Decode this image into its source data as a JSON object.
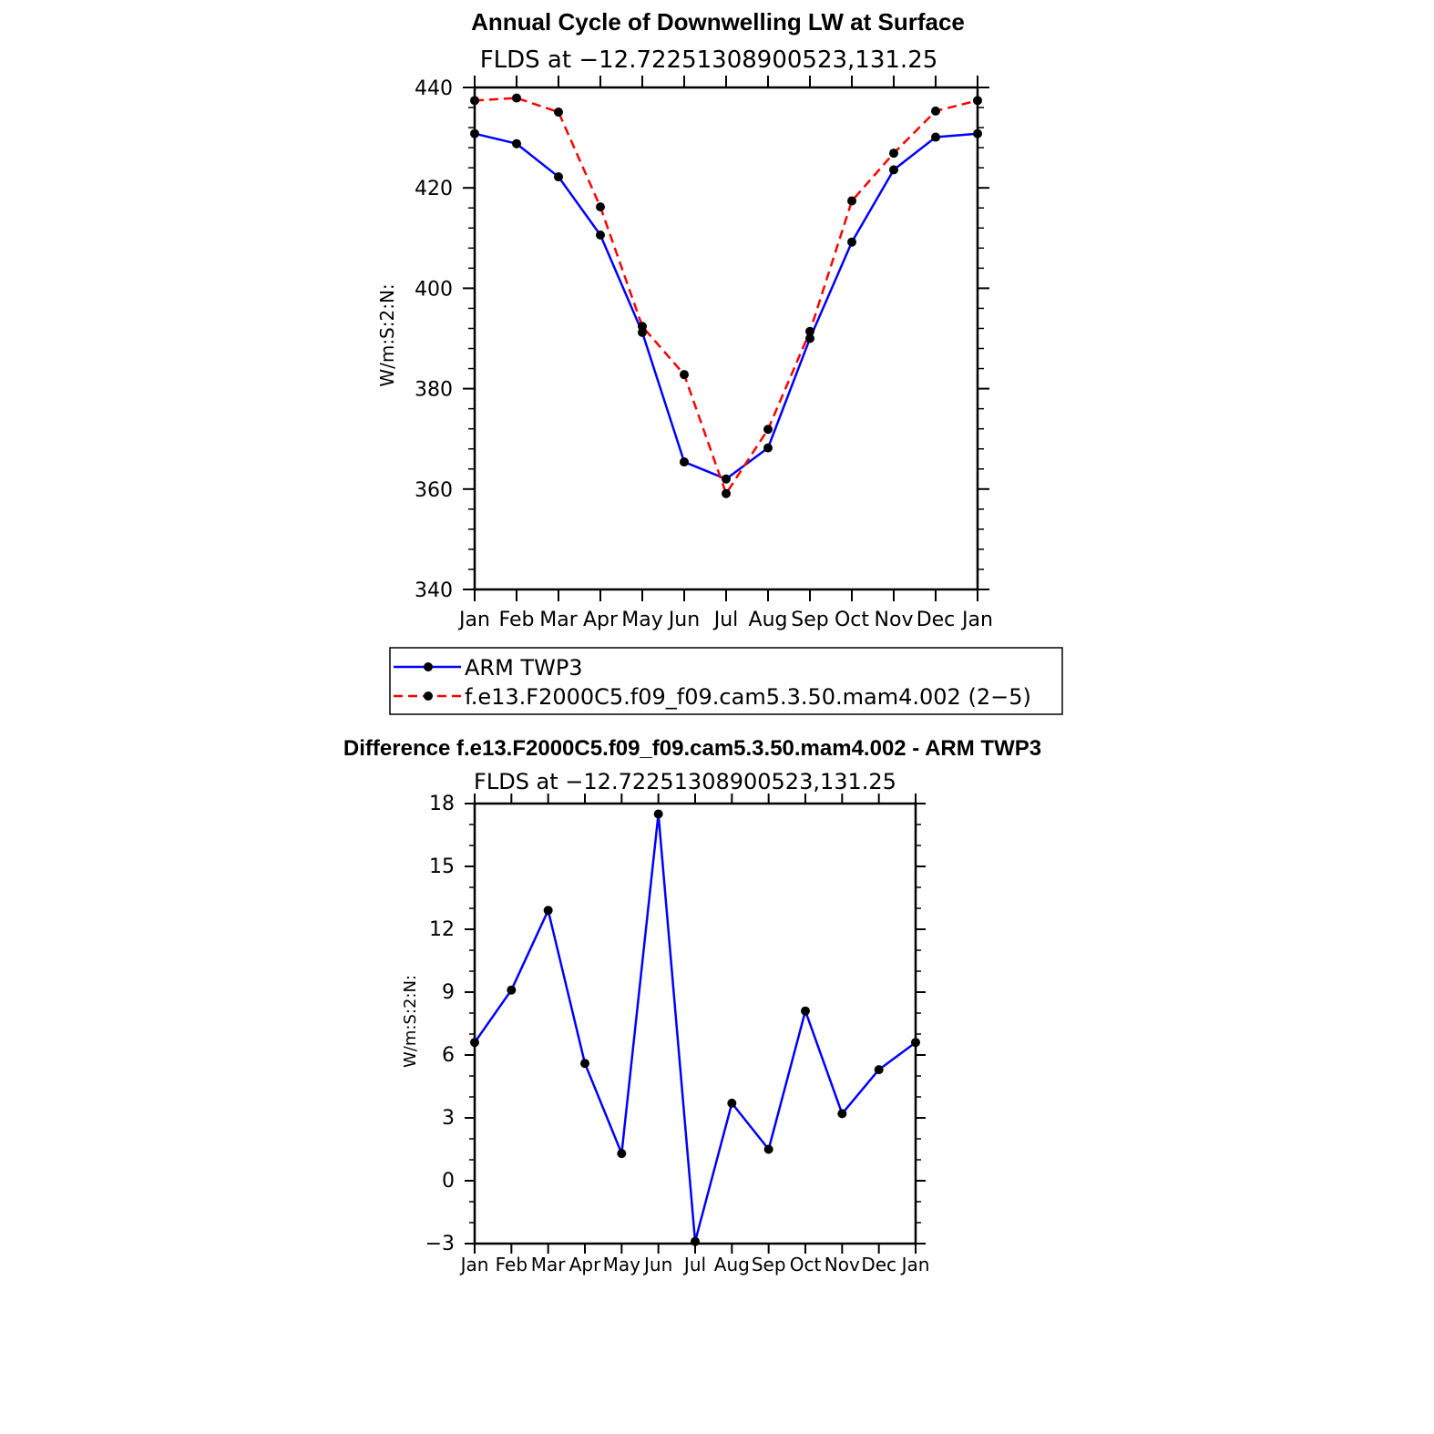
{
  "chart_data": [
    {
      "type": "line",
      "title": "Annual Cycle of Downwelling LW at Surface",
      "subtitle": "FLDS at −12.72251308900523,131.25",
      "ylabel": "W/m:S:2:N:",
      "xlabel": "",
      "ylim": [
        340,
        440
      ],
      "yticks": [
        "440",
        "420",
        "400",
        "380",
        "360",
        "340"
      ],
      "categories": [
        "Jan",
        "Feb",
        "Mar",
        "Apr",
        "May",
        "Jun",
        "Jul",
        "Aug",
        "Sep",
        "Oct",
        "Nov",
        "Dec",
        "Jan"
      ],
      "series": [
        {
          "name": "ARM TWP3",
          "color": "#0000ff",
          "style": "solid",
          "values": [
            430.8,
            428.8,
            422.2,
            410.6,
            391.2,
            365.4,
            362.0,
            368.2,
            390.0,
            409.2,
            423.6,
            430.1,
            430.8
          ]
        },
        {
          "name": "f.e13.F2000C5.f09_f09.cam5.3.50.mam4.002 (2−5)",
          "color": "#ff0000",
          "style": "dashed",
          "values": [
            437.4,
            437.9,
            435.1,
            416.2,
            392.4,
            382.8,
            359.1,
            371.9,
            391.4,
            417.4,
            426.9,
            435.3,
            437.4
          ]
        }
      ]
    },
    {
      "type": "line",
      "title": "Difference f.e13.F2000C5.f09_f09.cam5.3.50.mam4.002 - ARM TWP3",
      "subtitle": "FLDS at −12.72251308900523,131.25",
      "ylabel": "W/m:S:2:N:",
      "xlabel": "",
      "ylim": [
        -3,
        18
      ],
      "yticks": [
        "18",
        "15",
        "12",
        "9",
        "6",
        "3",
        "0",
        "−3"
      ],
      "categories": [
        "Jan",
        "Feb",
        "Mar",
        "Apr",
        "May",
        "Jun",
        "Jul",
        "Aug",
        "Sep",
        "Oct",
        "Nov",
        "Dec",
        "Jan"
      ],
      "series": [
        {
          "name": "Difference",
          "color": "#0000ff",
          "style": "solid",
          "values": [
            6.6,
            9.1,
            12.9,
            5.6,
            1.3,
            17.5,
            -2.9,
            3.7,
            1.5,
            8.1,
            3.2,
            5.3,
            6.6
          ]
        }
      ]
    }
  ]
}
